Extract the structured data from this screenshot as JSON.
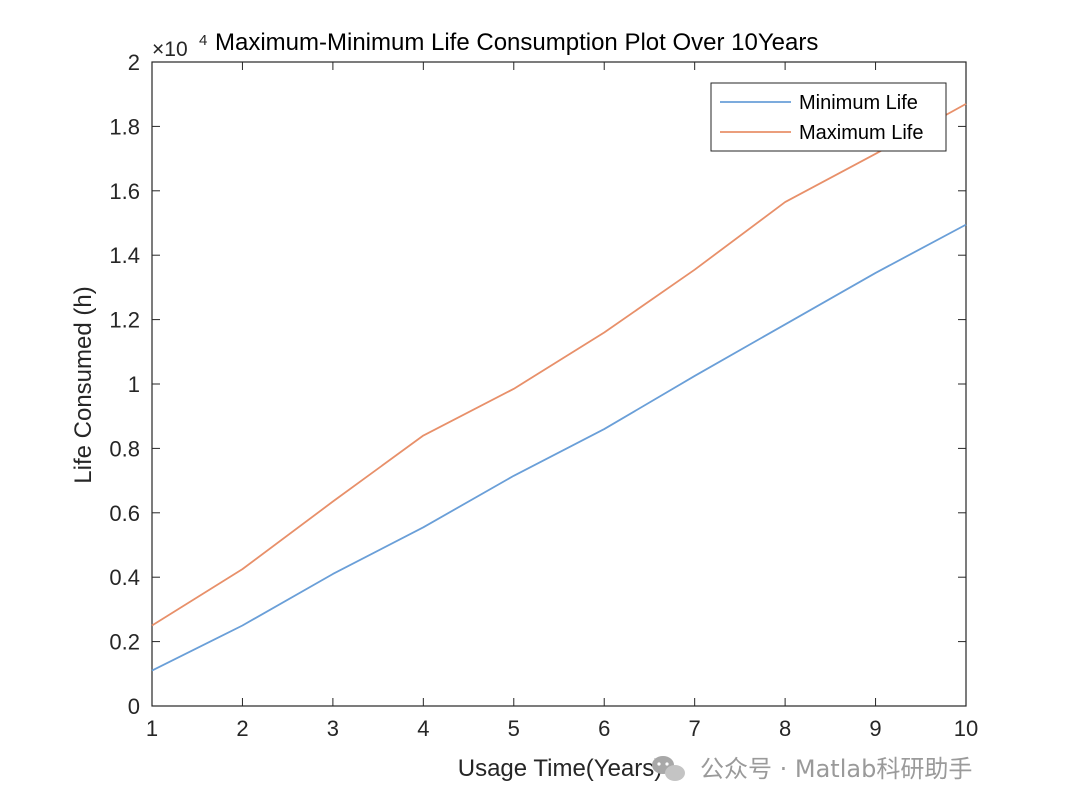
{
  "chart_data": {
    "type": "line",
    "title": "Maximum-Minimum Life Consumption Plot Over 10Years",
    "exponent_label": "×10",
    "exponent_power": "4",
    "xlabel": "Usage Time(Years)",
    "ylabel": "Life Consumed (h)",
    "xlim": [
      1,
      10
    ],
    "ylim": [
      0,
      2
    ],
    "x": [
      1,
      2,
      3,
      4,
      5,
      6,
      7,
      8,
      9,
      10
    ],
    "xticks": [
      "1",
      "2",
      "3",
      "4",
      "5",
      "6",
      "7",
      "8",
      "9",
      "10"
    ],
    "yticks": [
      0,
      0.2,
      0.4,
      0.6,
      0.8,
      1.0,
      1.2,
      1.4,
      1.6,
      1.8,
      2.0
    ],
    "ytick_labels": [
      "0",
      "0.2",
      "0.4",
      "0.6",
      "0.8",
      "1",
      "1.2",
      "1.4",
      "1.6",
      "1.8",
      "2"
    ],
    "legend_position": "top-right",
    "grid": false,
    "series": [
      {
        "name": "Minimum Life",
        "color": "#6a9fd8",
        "values": [
          0.11,
          0.25,
          0.41,
          0.555,
          0.715,
          0.86,
          1.025,
          1.185,
          1.345,
          1.495
        ]
      },
      {
        "name": "Maximum Life",
        "color": "#e8906a",
        "values": [
          0.25,
          0.425,
          0.635,
          0.84,
          0.985,
          1.16,
          1.355,
          1.565,
          1.715,
          1.87
        ]
      }
    ]
  },
  "watermark": {
    "icon": "wechat-icon",
    "text": "公众号 · Matlab科研助手"
  }
}
